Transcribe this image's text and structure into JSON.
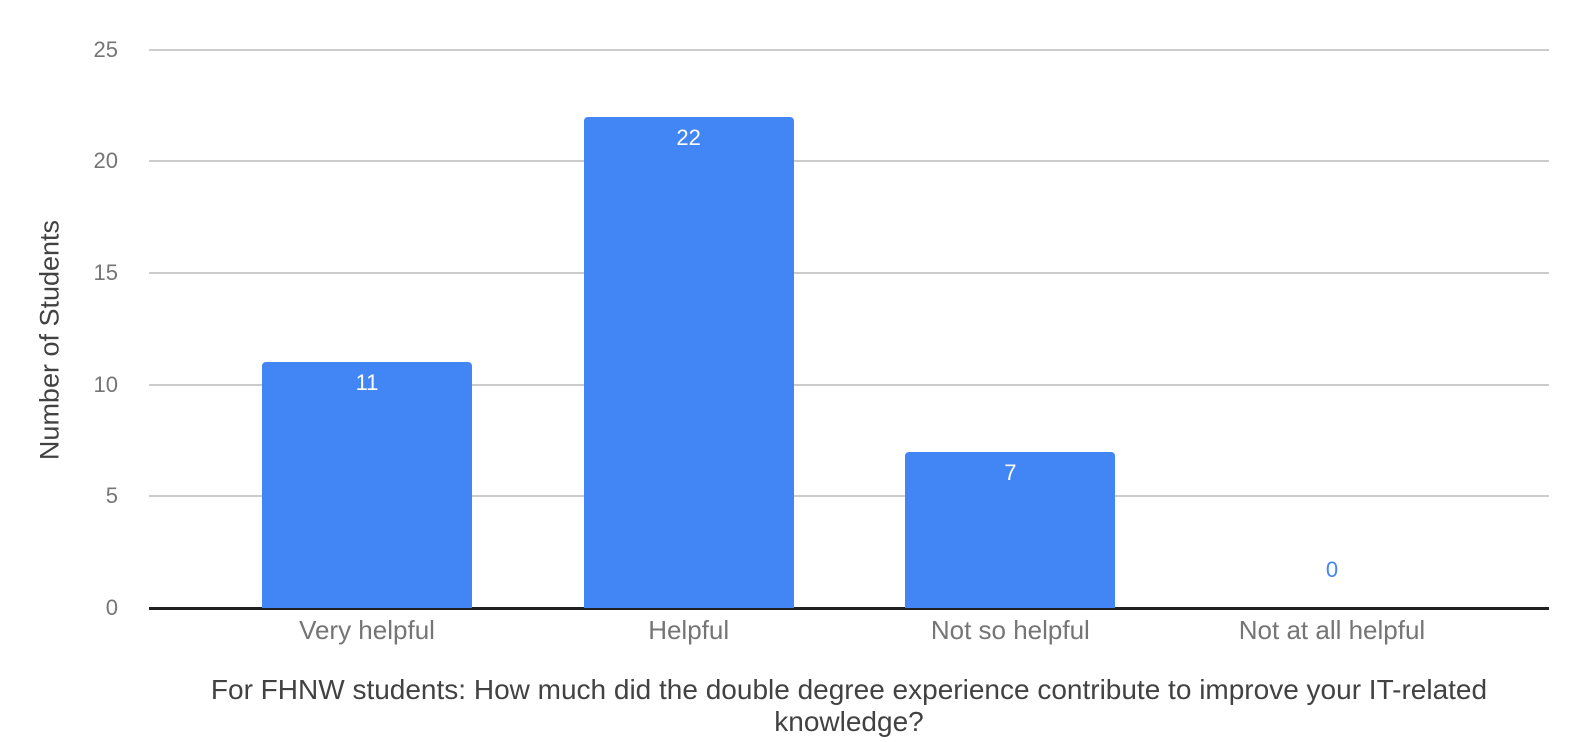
{
  "chart_data": {
    "type": "bar",
    "title": "",
    "categories": [
      "Very helpful",
      "Helpful",
      "Not so helpful",
      "Not at all helpful"
    ],
    "values": [
      11,
      22,
      7,
      0
    ],
    "xlabel": "For FHNW students: How much did the double degree experience contribute to improve your IT-related knowledge?",
    "ylabel": "Number of Students",
    "ylim": [
      0,
      25
    ],
    "yticks": [
      0,
      5,
      10,
      15,
      20,
      25
    ],
    "grid": true,
    "legend": "none",
    "colors": {
      "bar": "#4285f4",
      "value_label_inside": "#ffffff",
      "value_label_zero": "#4285f4",
      "gridline": "#cccccc",
      "axis_line": "#212121",
      "tick_label": "#757575",
      "category_label": "#757575",
      "axis_title": "#424242",
      "background": "#ffffff"
    }
  }
}
